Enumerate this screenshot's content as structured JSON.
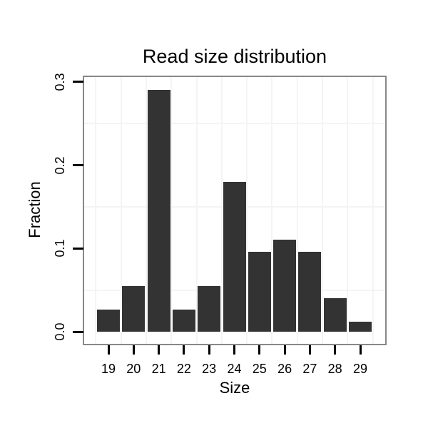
{
  "chart_data": {
    "type": "bar",
    "title": "Read size distribution",
    "xlabel": "Size",
    "ylabel": "Fraction",
    "categories": [
      19,
      20,
      21,
      22,
      23,
      24,
      25,
      26,
      27,
      28,
      29
    ],
    "values": [
      0.027,
      0.055,
      0.291,
      0.027,
      0.055,
      0.18,
      0.096,
      0.111,
      0.096,
      0.04,
      0.012
    ],
    "ylim": [
      -0.015,
      0.306
    ],
    "ytick_labels": [
      "0.0",
      "0.1",
      "0.2",
      "0.3"
    ],
    "ytick_values": [
      0.0,
      0.1,
      0.2,
      0.3
    ],
    "y_minor_gridlines": [
      0.05,
      0.15,
      0.25
    ],
    "x_minor_gridlines": [
      18.5,
      19.5,
      20.5,
      21.5,
      22.5,
      23.5,
      24.5,
      25.5,
      26.5,
      27.5,
      28.5,
      29.5
    ],
    "grid": "minor-only",
    "legend_position": "none",
    "colors": {
      "bar": "#333333",
      "panel_border": "#888888",
      "gridline": "#f4f4f4",
      "background": "#ffffff",
      "tick": "#000000",
      "text": "#000000"
    }
  }
}
